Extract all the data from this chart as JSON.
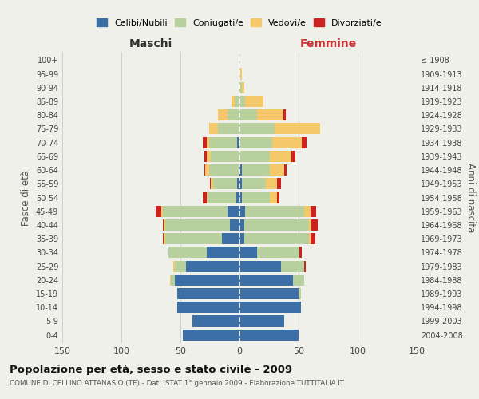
{
  "age_groups": [
    "0-4",
    "5-9",
    "10-14",
    "15-19",
    "20-24",
    "25-29",
    "30-34",
    "35-39",
    "40-44",
    "45-49",
    "50-54",
    "55-59",
    "60-64",
    "65-69",
    "70-74",
    "75-79",
    "80-84",
    "85-89",
    "90-94",
    "95-99",
    "100+"
  ],
  "birth_years": [
    "2004-2008",
    "1999-2003",
    "1994-1998",
    "1989-1993",
    "1984-1988",
    "1979-1983",
    "1974-1978",
    "1969-1973",
    "1964-1968",
    "1959-1963",
    "1954-1958",
    "1949-1953",
    "1944-1948",
    "1939-1943",
    "1934-1938",
    "1929-1933",
    "1924-1928",
    "1919-1923",
    "1914-1918",
    "1909-1913",
    "≤ 1908"
  ],
  "male": {
    "celibi": [
      48,
      40,
      53,
      53,
      55,
      45,
      28,
      15,
      8,
      10,
      3,
      2,
      0,
      0,
      2,
      0,
      0,
      0,
      0,
      0,
      0
    ],
    "coniugati": [
      0,
      0,
      0,
      0,
      3,
      10,
      32,
      48,
      55,
      55,
      24,
      20,
      26,
      24,
      24,
      18,
      10,
      4,
      1,
      0,
      0
    ],
    "vedovi": [
      0,
      0,
      0,
      0,
      1,
      1,
      0,
      1,
      1,
      1,
      1,
      2,
      3,
      4,
      2,
      8,
      8,
      3,
      0,
      0,
      0
    ],
    "divorziati": [
      0,
      0,
      0,
      0,
      0,
      0,
      0,
      1,
      1,
      5,
      3,
      1,
      1,
      2,
      3,
      0,
      0,
      0,
      0,
      0,
      0
    ]
  },
  "female": {
    "nubili": [
      50,
      38,
      52,
      50,
      45,
      35,
      15,
      4,
      4,
      5,
      2,
      2,
      2,
      0,
      0,
      0,
      0,
      0,
      0,
      0,
      0
    ],
    "coniugate": [
      0,
      0,
      0,
      2,
      10,
      20,
      36,
      55,
      55,
      50,
      24,
      20,
      24,
      26,
      28,
      30,
      15,
      5,
      2,
      1,
      0
    ],
    "vedove": [
      0,
      0,
      0,
      0,
      0,
      0,
      0,
      1,
      2,
      5,
      6,
      10,
      12,
      18,
      25,
      38,
      22,
      15,
      2,
      1,
      0
    ],
    "divorziate": [
      0,
      0,
      0,
      0,
      0,
      1,
      2,
      4,
      5,
      5,
      2,
      3,
      2,
      3,
      4,
      0,
      2,
      0,
      0,
      0,
      0
    ]
  },
  "colors": {
    "celibi": "#3c6fa5",
    "coniugati": "#b8cf9e",
    "vedovi": "#f5c96a",
    "divorziati": "#cc2222"
  },
  "xlim": 150,
  "title": "Popolazione per età, sesso e stato civile - 2009",
  "subtitle": "COMUNE DI CELLINO ATTANASIO (TE) - Dati ISTAT 1° gennaio 2009 - Elaborazione TUTTITALIA.IT",
  "label_maschi": "Maschi",
  "label_femmine": "Femmine",
  "ylabel_left": "Fasce di età",
  "ylabel_right": "Anni di nascita",
  "bg_color": "#f0f0eb",
  "grid_color": "#d0d0d0",
  "xtick_vals": [
    150,
    100,
    50,
    0,
    50,
    100,
    150
  ],
  "legend_labels": [
    "Celibi/Nubili",
    "Coniugati/e",
    "Vedovi/e",
    "Divorziati/e"
  ]
}
